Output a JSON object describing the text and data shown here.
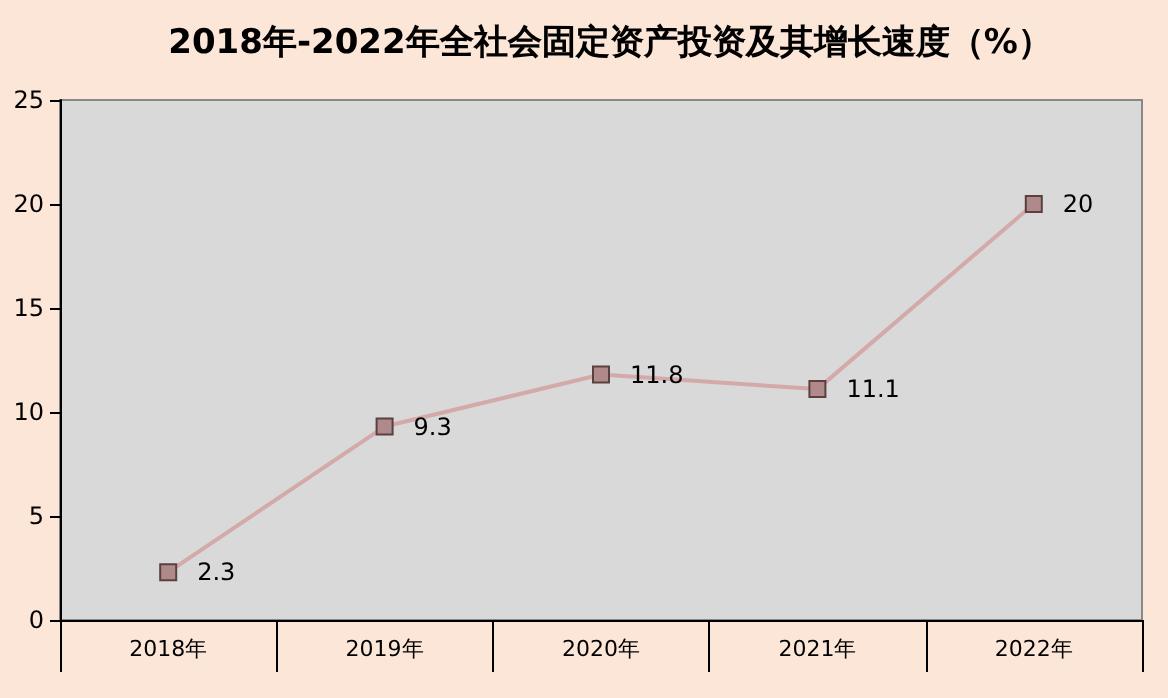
{
  "chart_data": {
    "type": "line",
    "title": "2018年-2022年全社会固定资产投资及其增长速度（%）",
    "categories": [
      "2018年",
      "2019年",
      "2020年",
      "2021年",
      "2022年"
    ],
    "series": [
      {
        "color": "#d4a9a9",
        "values": [
          2.3,
          9.3,
          11.8,
          11.1,
          20
        ]
      }
    ],
    "ylim": [
      0,
      25
    ],
    "yticks": [
      0,
      5,
      10,
      15,
      20,
      25
    ],
    "grid": false,
    "marker": "square",
    "data_labels": true
  }
}
